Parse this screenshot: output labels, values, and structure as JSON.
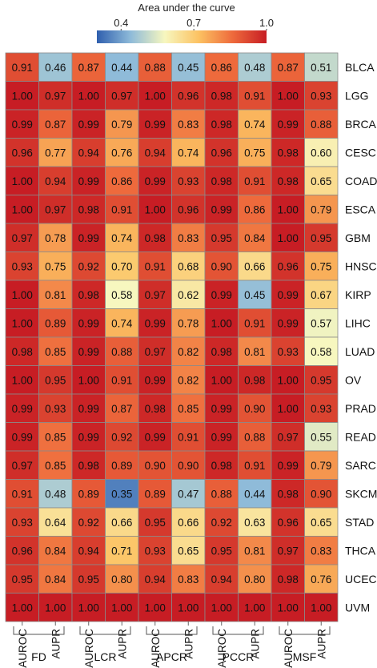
{
  "chart_data": {
    "type": "heatmap",
    "colorbar": {
      "title": "Area under the curve",
      "min": 0.3,
      "max": 1.0,
      "tick_labels": [
        "0.4",
        "0.7",
        "1.0"
      ],
      "tick_values": [
        0.4,
        0.7,
        1.0
      ],
      "colors": [
        "#2f5fae",
        "#8fbbd9",
        "#f7f7bf",
        "#fcc262",
        "#ee6a3c",
        "#c71d24"
      ]
    },
    "methods": [
      "FD",
      "LCR",
      "APCR",
      "PCCR",
      "MSF"
    ],
    "metrics": [
      "AUROC",
      "AUPR"
    ],
    "columns": [
      "AUROC",
      "AUPR",
      "AUROC",
      "AUPR",
      "AUROC",
      "AUPR",
      "AUROC",
      "AUPR",
      "AUROC",
      "AUPR"
    ],
    "rows": [
      "BLCA",
      "LGG",
      "BRCA",
      "CESC",
      "COAD",
      "ESCA",
      "GBM",
      "HNSC",
      "KIRP",
      "LIHC",
      "LUAD",
      "OV",
      "PRAD",
      "READ",
      "SARC",
      "SKCM",
      "STAD",
      "THCA",
      "UCEC",
      "UVM"
    ],
    "values": [
      [
        "0.91",
        "0.46",
        "0.87",
        "0.44",
        "0.88",
        "0.45",
        "0.86",
        "0.48",
        "0.87",
        "0.51"
      ],
      [
        "1.00",
        "0.97",
        "1.00",
        "0.97",
        "1.00",
        "0.96",
        "0.98",
        "0.91",
        "1.00",
        "0.93"
      ],
      [
        "0.99",
        "0.87",
        "0.99",
        "0.79",
        "0.99",
        "0.83",
        "0.98",
        "0.74",
        "0.99",
        "0.88"
      ],
      [
        "0.96",
        "0.77",
        "0.94",
        "0.76",
        "0.94",
        "0.74",
        "0.96",
        "0.75",
        "0.98",
        "0.60"
      ],
      [
        "1.00",
        "0.94",
        "0.99",
        "0.86",
        "0.99",
        "0.93",
        "0.98",
        "0.91",
        "0.98",
        "0.65"
      ],
      [
        "1.00",
        "0.97",
        "0.98",
        "0.91",
        "1.00",
        "0.96",
        "0.99",
        "0.86",
        "1.00",
        "0.79"
      ],
      [
        "0.97",
        "0.78",
        "0.99",
        "0.74",
        "0.98",
        "0.83",
        "0.95",
        "0.84",
        "1.00",
        "0.95"
      ],
      [
        "0.93",
        "0.75",
        "0.92",
        "0.70",
        "0.91",
        "0.68",
        "0.90",
        "0.66",
        "0.96",
        "0.75"
      ],
      [
        "1.00",
        "0.81",
        "0.98",
        "0.58",
        "0.97",
        "0.62",
        "0.99",
        "0.45",
        "0.99",
        "0.67"
      ],
      [
        "1.00",
        "0.89",
        "0.99",
        "0.74",
        "0.99",
        "0.78",
        "1.00",
        "0.91",
        "0.99",
        "0.57"
      ],
      [
        "0.98",
        "0.85",
        "0.99",
        "0.88",
        "0.97",
        "0.82",
        "0.98",
        "0.81",
        "0.93",
        "0.58"
      ],
      [
        "1.00",
        "0.95",
        "1.00",
        "0.91",
        "0.99",
        "0.82",
        "1.00",
        "0.98",
        "1.00",
        "0.95"
      ],
      [
        "0.99",
        "0.93",
        "0.99",
        "0.87",
        "0.98",
        "0.85",
        "0.99",
        "0.90",
        "1.00",
        "0.93"
      ],
      [
        "0.99",
        "0.85",
        "0.99",
        "0.92",
        "0.99",
        "0.91",
        "0.99",
        "0.88",
        "0.97",
        "0.55"
      ],
      [
        "0.97",
        "0.85",
        "0.98",
        "0.89",
        "0.90",
        "0.90",
        "0.98",
        "0.91",
        "0.99",
        "0.79"
      ],
      [
        "0.91",
        "0.48",
        "0.89",
        "0.35",
        "0.89",
        "0.47",
        "0.88",
        "0.44",
        "0.98",
        "0.90"
      ],
      [
        "0.93",
        "0.64",
        "0.92",
        "0.66",
        "0.95",
        "0.66",
        "0.92",
        "0.63",
        "0.96",
        "0.65"
      ],
      [
        "0.96",
        "0.84",
        "0.94",
        "0.71",
        "0.93",
        "0.65",
        "0.95",
        "0.81",
        "0.97",
        "0.83"
      ],
      [
        "0.95",
        "0.84",
        "0.95",
        "0.80",
        "0.94",
        "0.83",
        "0.94",
        "0.80",
        "0.98",
        "0.76"
      ],
      [
        "1.00",
        "1.00",
        "1.00",
        "1.00",
        "1.00",
        "1.00",
        "1.00",
        "1.00",
        "1.00",
        "1.00"
      ]
    ]
  }
}
